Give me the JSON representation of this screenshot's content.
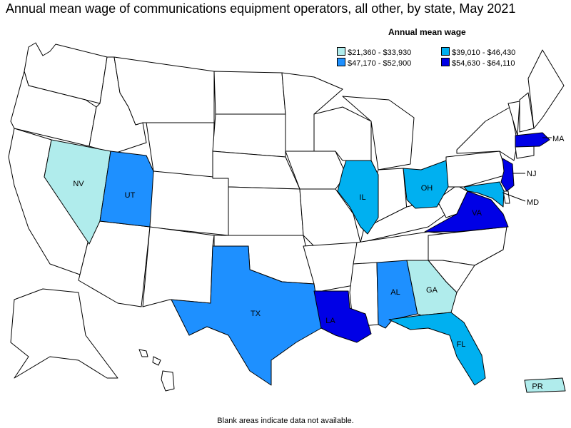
{
  "title": "Annual mean wage of communications equipment operators, all other, by state, May 2021",
  "legend": {
    "title": "Annual mean wage",
    "items": [
      {
        "label": "$21,360 - $33,930",
        "color": "#b0ecec"
      },
      {
        "label": "$39,010 - $46,430",
        "color": "#00b0f0"
      },
      {
        "label": "$47,170 - $52,900",
        "color": "#1e90ff"
      },
      {
        "label": "$54,630 - $64,110",
        "color": "#0000e6"
      }
    ]
  },
  "footnote": "Blank areas indicate data not available.",
  "states": [
    {
      "abbr": "NV",
      "label": "NV",
      "tier": 0
    },
    {
      "abbr": "UT",
      "label": "UT",
      "tier": 2
    },
    {
      "abbr": "TX",
      "label": "TX",
      "tier": 2
    },
    {
      "abbr": "IL",
      "label": "IL",
      "tier": 1
    },
    {
      "abbr": "OH",
      "label": "OH",
      "tier": 1
    },
    {
      "abbr": "LA",
      "label": "LA",
      "tier": 3
    },
    {
      "abbr": "AL",
      "label": "AL",
      "tier": 2
    },
    {
      "abbr": "GA",
      "label": "GA",
      "tier": 0
    },
    {
      "abbr": "FL",
      "label": "FL",
      "tier": 1
    },
    {
      "abbr": "VA",
      "label": "VA",
      "tier": 3
    },
    {
      "abbr": "MD",
      "label": "MD",
      "tier": 1
    },
    {
      "abbr": "NJ",
      "label": "NJ",
      "tier": 3
    },
    {
      "abbr": "MA",
      "label": "MA",
      "tier": 3
    },
    {
      "abbr": "PR",
      "label": "PR",
      "tier": 0
    }
  ]
}
